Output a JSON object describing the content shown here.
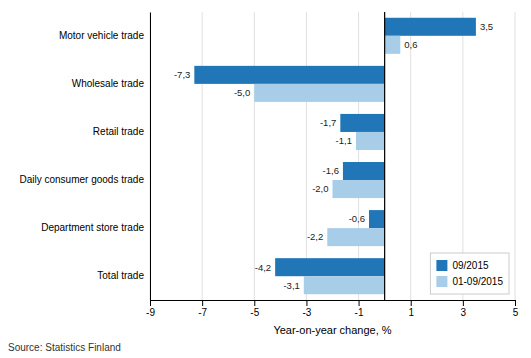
{
  "chart_data": {
    "type": "bar",
    "orientation": "horizontal",
    "categories": [
      "Total trade",
      "Department store trade",
      "Daily consumer goods trade",
      "Retail trade",
      "Wholesale trade",
      "Motor vehicle trade"
    ],
    "series": [
      {
        "name": "09/2015",
        "color": "#2176b8",
        "values": [
          -4.2,
          -0.6,
          -1.6,
          -1.7,
          -7.3,
          3.5
        ],
        "value_labels": [
          "-4,2",
          "-0,6",
          "-1,6",
          "-1,7",
          "-7,3",
          "3,5"
        ]
      },
      {
        "name": "01-09/2015",
        "color": "#a8cde8",
        "values": [
          -3.1,
          -2.2,
          -2.0,
          -1.1,
          -5.0,
          0.6
        ],
        "value_labels": [
          "-3,1",
          "-2,2",
          "-2,0",
          "-1,1",
          "-5,0",
          "0,6"
        ]
      }
    ],
    "xlabel": "Year-on-year change, %",
    "source": "Source: Statistics Finland",
    "xlim": [
      -9,
      5
    ],
    "xticks": [
      -9,
      -7,
      -5,
      -3,
      -1,
      1,
      3,
      5
    ],
    "grid": true,
    "legend": "lower right",
    "data_labels": true
  }
}
